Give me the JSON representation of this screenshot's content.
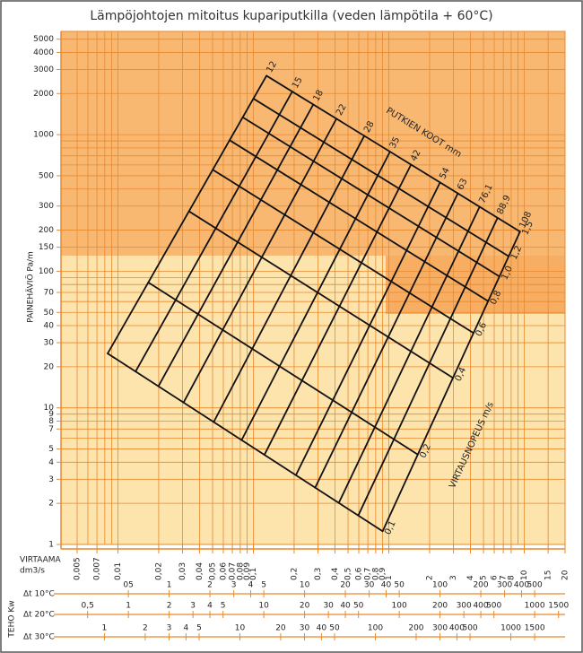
{
  "chart_data": {
    "type": "nomogram",
    "title": "Lämpöjohtojen mitoitus kupariputkilla (veden lämpötila + 60°C)",
    "y_label": "PAINEHÄVIÖ Pa/m",
    "log_y": true,
    "ylim": [
      1,
      5700
    ],
    "yticks": [
      1,
      2,
      3,
      4,
      5,
      7,
      8,
      9,
      10,
      20,
      30,
      40,
      50,
      70,
      100,
      150,
      200,
      300,
      500,
      1000,
      2000,
      3000,
      4000,
      5000
    ],
    "yminor": [
      6,
      60,
      80,
      90,
      400,
      600,
      700,
      800,
      900
    ],
    "x_label": [
      "VIRTAAMA",
      "dm3/s"
    ],
    "log_x": true,
    "xlim": [
      0.0038,
      20
    ],
    "xticks": [
      {
        "value": 0.005,
        "label": "0,005"
      },
      {
        "value": 0.007,
        "label": "0,007"
      },
      {
        "value": 0.01,
        "label": "0,01"
      },
      {
        "value": 0.02,
        "label": "0,02"
      },
      {
        "value": 0.03,
        "label": "0,03"
      },
      {
        "value": 0.04,
        "label": "0,04"
      },
      {
        "value": 0.05,
        "label": "0,05"
      },
      {
        "value": 0.06,
        "label": "0,06"
      },
      {
        "value": 0.07,
        "label": "0,07"
      },
      {
        "value": 0.08,
        "label": "0,08"
      },
      {
        "value": 0.09,
        "label": "0,09"
      },
      {
        "value": 0.1,
        "label": "0,1"
      },
      {
        "value": 0.2,
        "label": "0,2"
      },
      {
        "value": 0.3,
        "label": "0,3"
      },
      {
        "value": 0.4,
        "label": "0,4"
      },
      {
        "value": 0.5,
        "label": "0,5"
      },
      {
        "value": 0.6,
        "label": "0,6"
      },
      {
        "value": 0.7,
        "label": "0,7"
      },
      {
        "value": 0.8,
        "label": "0,8"
      },
      {
        "value": 0.9,
        "label": "0,9"
      },
      1,
      2,
      3,
      4,
      5,
      6,
      7,
      8,
      10,
      15,
      20
    ],
    "xminor": [
      0.006,
      0.008,
      0.009,
      9
    ],
    "grid": true,
    "grid_color": "#e8892e",
    "power_label": "TEHO Kw",
    "power_scales": [
      {
        "label": "Δt 10°C",
        "xlim": [
          0.159,
          838
        ],
        "ticks": [
          {
            "value": 0.5,
            "label": "05"
          },
          1,
          2,
          3,
          4,
          5,
          10,
          20,
          30,
          40,
          50,
          100,
          200,
          300,
          400,
          500
        ]
      },
      {
        "label": "Δt 20°C",
        "xlim": [
          0.318,
          1676
        ],
        "ticks": [
          {
            "value": 0.5,
            "label": "0,5"
          },
          1,
          2,
          3,
          4,
          5,
          10,
          20,
          30,
          40,
          50,
          100,
          200,
          300,
          400,
          500,
          1000,
          1500
        ]
      },
      {
        "label": "Δt 30°C",
        "xlim": [
          0.478,
          2514
        ],
        "ticks": [
          1,
          2,
          3,
          4,
          5,
          10,
          20,
          30,
          40,
          50,
          100,
          200,
          300,
          400,
          500,
          1000,
          1500
        ]
      }
    ],
    "pipe_label": "PUTKIEN KOOT mm",
    "pipe_sizes": [
      12,
      15,
      18,
      22,
      28,
      35,
      42,
      54,
      63,
      {
        "value": 76.1,
        "label": "76,1"
      },
      {
        "value": 88.9,
        "label": "88,9"
      },
      108
    ],
    "velocity_label": "VIRTAUSNOPEUS m/s",
    "velocities": [
      {
        "value": 1.5,
        "label": "1,5"
      },
      {
        "value": 1.2,
        "label": "1,2"
      },
      {
        "value": 1.0,
        "label": "1,0"
      },
      {
        "value": 0.8,
        "label": "0,8"
      },
      {
        "value": 0.6,
        "label": "0,6"
      },
      {
        "value": 0.4,
        "label": "0,4"
      },
      {
        "value": 0.2,
        "label": "0,2"
      },
      {
        "value": 0.1,
        "label": "0,1"
      }
    ],
    "corners": {
      "x": [
        0.0084,
        0.125,
        0.9,
        9.3
      ],
      "y": [
        25,
        2700,
        1.25,
        195
      ]
    }
  }
}
